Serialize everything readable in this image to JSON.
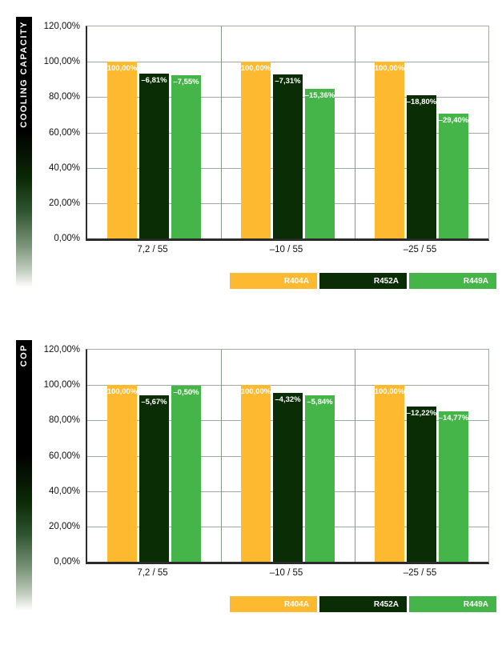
{
  "page": {
    "background": "#ffffff"
  },
  "palette": {
    "grid": "#9eae9e",
    "group_divider": "#859b85",
    "axis": "#2b2b2b",
    "tick_text": "#111111",
    "bar_label_text": "#ffffff",
    "r404a": "#fdb92f",
    "r452a": "#0b2d06",
    "r449a": "#45b549"
  },
  "chart_data": [
    {
      "type": "bar",
      "title": "COOLING CAPACITY",
      "categories": [
        "7,2 / 55",
        "–10 / 55",
        "–25 / 55"
      ],
      "series": [
        {
          "name": "R404A",
          "color": "#fdb92f",
          "values": [
            100.0,
            100.0,
            100.0
          ],
          "bar_labels": [
            "100,00%",
            "100,00%",
            "100,00%"
          ]
        },
        {
          "name": "R452A",
          "color": "#0b2d06",
          "values": [
            93.19,
            92.69,
            81.2
          ],
          "bar_labels": [
            "–6,81%",
            "–7,31%",
            "–18,80%"
          ]
        },
        {
          "name": "R449A",
          "color": "#45b549",
          "values": [
            92.45,
            84.64,
            70.6
          ],
          "bar_labels": [
            "–7,55%",
            "–15,36%",
            "–29,40%"
          ]
        }
      ],
      "ylim": [
        0,
        120
      ],
      "ytick_labels": [
        "120,00%",
        "100,00%",
        "80,00%",
        "60,00%",
        "40,00%",
        "20,00%",
        "0,00%"
      ],
      "grid": true,
      "legend": [
        "R404A",
        "R452A",
        "R449A"
      ],
      "legend_position": "bottom-right"
    },
    {
      "type": "bar",
      "title": "COP",
      "categories": [
        "7,2 / 55",
        "–10 / 55",
        "–25 / 55"
      ],
      "series": [
        {
          "name": "R404A",
          "color": "#fdb92f",
          "values": [
            100.0,
            100.0,
            100.0
          ],
          "bar_labels": [
            "100,00%",
            "100,00%",
            "100,00%"
          ]
        },
        {
          "name": "R452A",
          "color": "#0b2d06",
          "values": [
            94.33,
            95.68,
            87.78
          ],
          "bar_labels": [
            "–5,67%",
            "–4,32%",
            "–12,22%"
          ]
        },
        {
          "name": "R449A",
          "color": "#45b549",
          "values": [
            99.5,
            94.16,
            85.23
          ],
          "bar_labels": [
            "–0,50%",
            "–5,84%",
            "–14,77%"
          ]
        }
      ],
      "ylim": [
        0,
        120
      ],
      "ytick_labels": [
        "120,00%",
        "100,00%",
        "80,00%",
        "60,00%",
        "40,00%",
        "20,00%",
        "0,00%"
      ],
      "grid": true,
      "legend": [
        "R404A",
        "R452A",
        "R449A"
      ],
      "legend_position": "bottom-right"
    }
  ]
}
